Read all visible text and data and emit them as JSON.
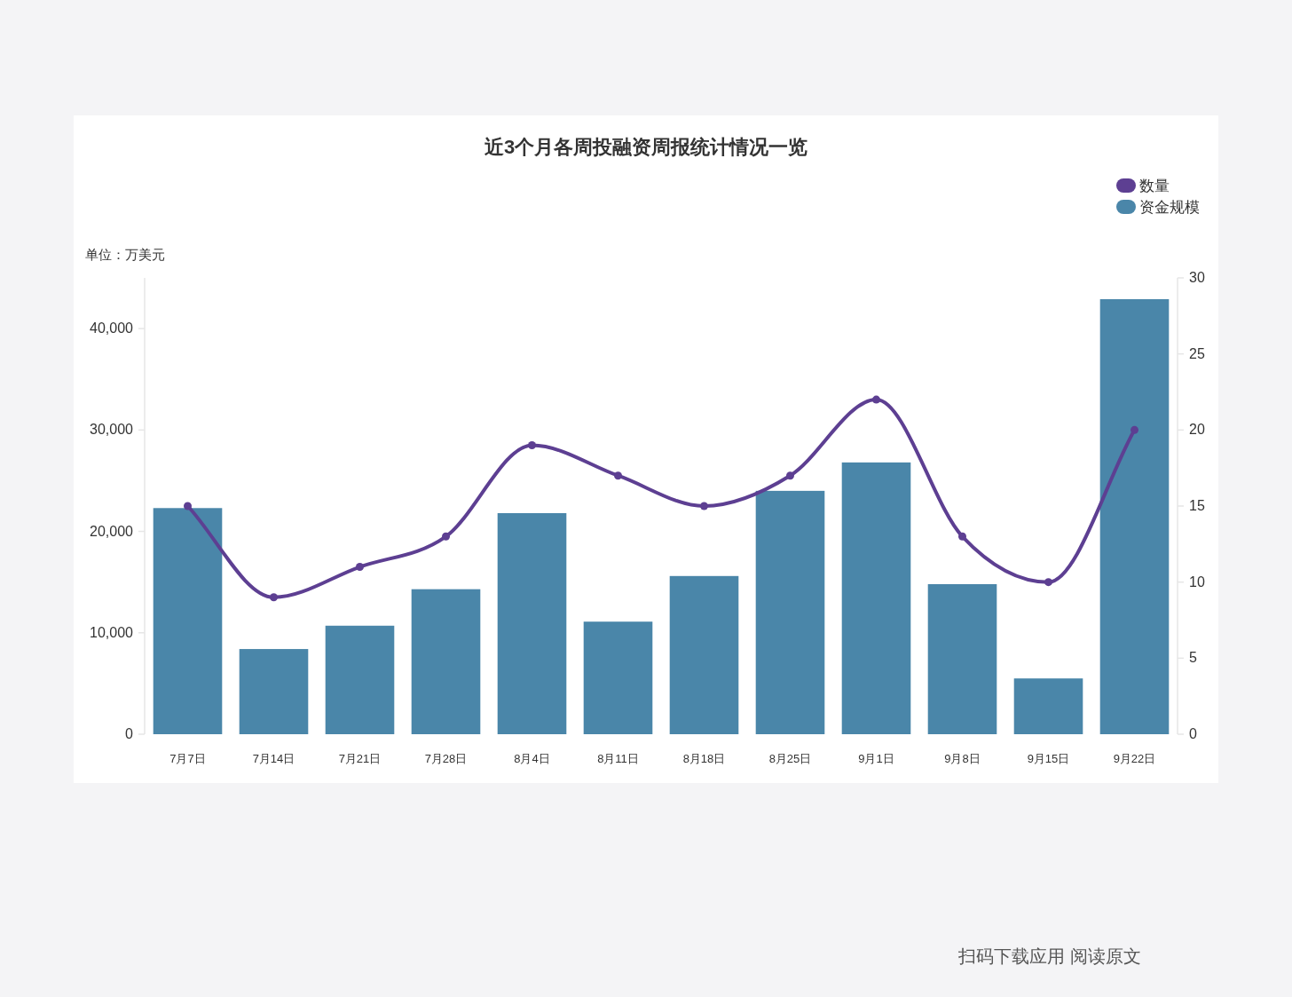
{
  "chart_data": {
    "type": "bar",
    "title": "近3个月各周投融资周报统计情况一览",
    "ylabel": "单位：万美元",
    "categories": [
      "7月7日",
      "7月14日",
      "7月21日",
      "7月28日",
      "8月4日",
      "8月11日",
      "8月18日",
      "8月25日",
      "9月1日",
      "9月8日",
      "9月15日",
      "9月22日"
    ],
    "series": [
      {
        "name": "数量",
        "type": "line",
        "axis": "y2",
        "color": "#5d3f92",
        "values": [
          15,
          9,
          11,
          13,
          19,
          17,
          15,
          17,
          22,
          13,
          10,
          20
        ]
      },
      {
        "name": "资金规模",
        "color": "#4a86a9",
        "values": [
          22300,
          8400,
          10700,
          14300,
          21800,
          11100,
          15600,
          24000,
          26800,
          14800,
          5500,
          42900
        ]
      }
    ],
    "ylim": [
      0,
      45000
    ],
    "yticks": [
      0,
      {
        "value": 10000,
        "label": "10,000"
      },
      {
        "value": 20000,
        "label": "20,000"
      },
      {
        "value": 30000,
        "label": "30,000"
      },
      {
        "value": 40000,
        "label": "40,000"
      }
    ],
    "y2lim": [
      0,
      30
    ],
    "y2ticks": [
      0,
      5,
      10,
      15,
      20,
      25,
      30
    ],
    "marker": "circle",
    "legend": "top right",
    "annotations": [
      "扫码下载应用 阅读原文"
    ]
  }
}
